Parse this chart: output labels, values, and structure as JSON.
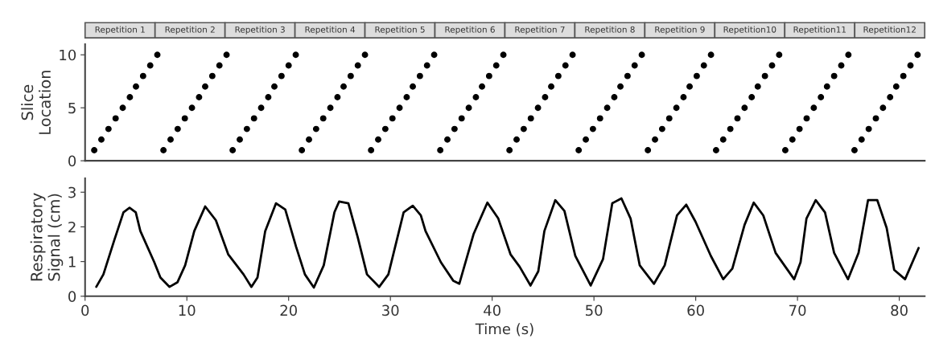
{
  "chart_data": [
    {
      "type": "scatter",
      "ylabel": "Slice Location",
      "xlim": [
        0,
        82.5
      ],
      "ylim": [
        0,
        11
      ],
      "yticks": [
        0,
        5,
        10
      ],
      "tick_labels": "y",
      "marker": "circle",
      "grid": false,
      "legend": false,
      "annotations": [
        "Repetition 1",
        "Repetition 2",
        "Repetition 3",
        "Repetition 4",
        "Repetition 5",
        "Repetition 6",
        "Repetition 7",
        "Repetition 8",
        "Repetition 9",
        "Repetition10",
        "Repetition11",
        "Repetition12"
      ],
      "series": [
        {
          "color": "#000000",
          "x": [
            0.9,
            1.6,
            2.3,
            3.0,
            3.7,
            4.4,
            5.0,
            5.7,
            6.4,
            7.1,
            7.7,
            8.4,
            9.1,
            9.8,
            10.5,
            11.2,
            11.8,
            12.5,
            13.2,
            13.9,
            14.5,
            15.2,
            15.9,
            16.6,
            17.3,
            18.0,
            18.6,
            19.3,
            20.0,
            20.7,
            21.3,
            22.0,
            22.7,
            23.4,
            24.1,
            24.8,
            25.4,
            26.1,
            26.8,
            27.5,
            28.1,
            28.8,
            29.5,
            30.2,
            30.9,
            31.6,
            32.2,
            32.9,
            33.6,
            34.3,
            34.9,
            35.6,
            36.3,
            37.0,
            37.7,
            38.4,
            39.0,
            39.7,
            40.4,
            41.1,
            41.7,
            42.4,
            43.1,
            43.8,
            44.5,
            45.2,
            45.8,
            46.5,
            47.2,
            47.9,
            48.5,
            49.2,
            49.9,
            50.6,
            51.3,
            52.0,
            52.6,
            53.3,
            54.0,
            54.7,
            55.3,
            56.0,
            56.7,
            57.4,
            58.1,
            58.8,
            59.4,
            60.1,
            60.8,
            61.5,
            62.0,
            62.7,
            63.4,
            64.1,
            64.8,
            65.5,
            66.1,
            66.8,
            67.5,
            68.2,
            68.8,
            69.5,
            70.2,
            70.9,
            71.6,
            72.3,
            72.9,
            73.6,
            74.3,
            75.0,
            75.6,
            76.3,
            77.0,
            77.7,
            78.4,
            79.1,
            79.7,
            80.4,
            81.1,
            81.8
          ],
          "values": [
            1,
            2,
            3,
            4,
            5,
            6,
            7,
            8,
            9,
            10,
            1,
            2,
            3,
            4,
            5,
            6,
            7,
            8,
            9,
            10,
            1,
            2,
            3,
            4,
            5,
            6,
            7,
            8,
            9,
            10,
            1,
            2,
            3,
            4,
            5,
            6,
            7,
            8,
            9,
            10,
            1,
            2,
            3,
            4,
            5,
            6,
            7,
            8,
            9,
            10,
            1,
            2,
            3,
            4,
            5,
            6,
            7,
            8,
            9,
            10,
            1,
            2,
            3,
            4,
            5,
            6,
            7,
            8,
            9,
            10,
            1,
            2,
            3,
            4,
            5,
            6,
            7,
            8,
            9,
            10,
            1,
            2,
            3,
            4,
            5,
            6,
            7,
            8,
            9,
            10,
            1,
            2,
            3,
            4,
            5,
            6,
            7,
            8,
            9,
            10,
            1,
            2,
            3,
            4,
            5,
            6,
            7,
            8,
            9,
            10,
            1,
            2,
            3,
            4,
            5,
            6,
            7,
            8,
            9,
            10
          ]
        }
      ]
    },
    {
      "type": "line",
      "xlabel": "Time (s)",
      "ylabel": "Respiratory Signal (cm)",
      "xlim": [
        0,
        82.5
      ],
      "xticks": [
        0,
        10,
        20,
        30,
        40,
        50,
        60,
        70,
        80
      ],
      "ylim": [
        0,
        3.4
      ],
      "yticks": [
        0,
        1,
        2,
        3
      ],
      "grid": false,
      "legend": false,
      "marker": "none",
      "line_style": "solid",
      "series": [
        {
          "color": "#000000",
          "x": [
            1.1,
            1.8,
            2.86,
            3.77,
            4.37,
            4.98,
            5.43,
            6.8,
            7.4,
            8.3,
            9.07,
            9.83,
            10.73,
            11.8,
            12.85,
            14.06,
            15.57,
            16.34,
            16.94,
            17.7,
            18.76,
            19.67,
            20.73,
            21.6,
            22.48,
            23.45,
            24.5,
            24.96,
            25.87,
            26.79,
            27.7,
            28.9,
            29.8,
            31.3,
            32.2,
            32.99,
            33.45,
            34.96,
            36.17,
            36.77,
            38.17,
            39.53,
            40.6,
            41.8,
            42.7,
            43.77,
            44.53,
            45.13,
            46.2,
            47.1,
            48.17,
            49.68,
            50.89,
            51.8,
            52.7,
            53.6,
            54.5,
            55.9,
            56.95,
            58.16,
            59.07,
            59.98,
            61.49,
            62.7,
            63.6,
            64.8,
            65.7,
            66.64,
            67.85,
            69.67,
            70.3,
            70.88,
            71.79,
            72.7,
            73.6,
            74.96,
            76.0,
            76.93,
            77.84,
            78.76,
            79.5,
            80.57,
            81.9
          ],
          "values": [
            0.27,
            0.63,
            1.61,
            2.42,
            2.55,
            2.42,
            1.88,
            0.98,
            0.54,
            0.27,
            0.4,
            0.89,
            1.88,
            2.59,
            2.19,
            1.21,
            0.63,
            0.27,
            0.54,
            1.88,
            2.68,
            2.5,
            1.43,
            0.63,
            0.25,
            0.89,
            2.42,
            2.73,
            2.68,
            1.7,
            0.63,
            0.27,
            0.63,
            2.42,
            2.61,
            2.33,
            1.88,
            0.98,
            0.45,
            0.36,
            1.79,
            2.7,
            2.24,
            1.21,
            0.85,
            0.31,
            0.72,
            1.88,
            2.77,
            2.46,
            1.16,
            0.31,
            1.07,
            2.68,
            2.82,
            2.24,
            0.89,
            0.36,
            0.89,
            2.33,
            2.64,
            2.15,
            1.16,
            0.49,
            0.8,
            2.06,
            2.7,
            2.33,
            1.25,
            0.49,
            0.98,
            2.24,
            2.77,
            2.42,
            1.25,
            0.49,
            1.25,
            2.77,
            2.77,
            1.97,
            0.76,
            0.49,
            1.39
          ]
        }
      ]
    }
  ]
}
